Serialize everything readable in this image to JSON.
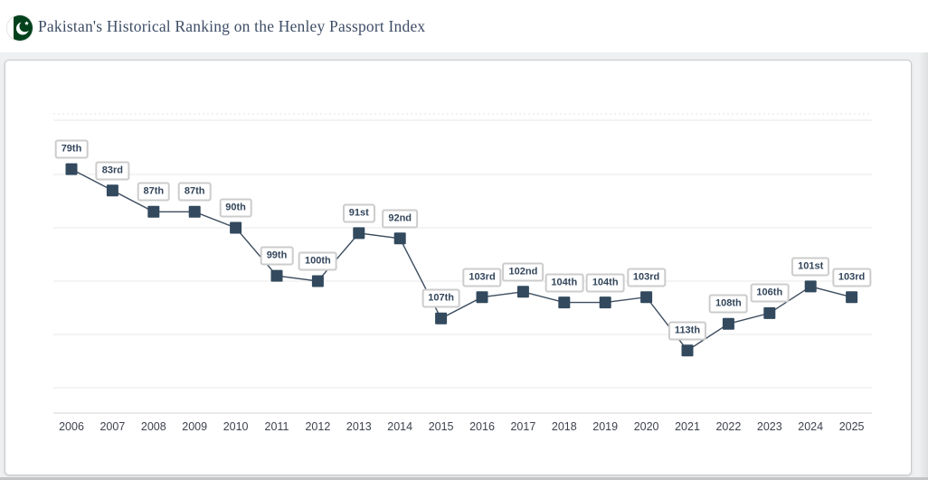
{
  "header": {
    "title": "Pakistan's Historical Ranking on the Henley Passport Index",
    "flag_icon": "pakistan-flag-icon",
    "flag_colors": {
      "green": "#01411c",
      "white": "#ffffff"
    }
  },
  "chart_data": {
    "type": "line",
    "title": "Pakistan's Historical Ranking on the Henley Passport Index",
    "x": [
      2006,
      2007,
      2008,
      2009,
      2010,
      2011,
      2012,
      2013,
      2014,
      2015,
      2016,
      2017,
      2018,
      2019,
      2020,
      2021,
      2022,
      2023,
      2024,
      2025
    ],
    "series": [
      {
        "name": "Henley Passport Index ranking",
        "values": [
          79,
          83,
          87,
          87,
          90,
          99,
          100,
          91,
          92,
          107,
          103,
          102,
          104,
          104,
          103,
          113,
          108,
          106,
          101,
          103
        ]
      }
    ],
    "point_labels": [
      "79th",
      "83rd",
      "87th",
      "87th",
      "90th",
      "99th",
      "100th",
      "91st",
      "92nd",
      "107th",
      "103rd",
      "102nd",
      "104th",
      "104th",
      "103rd",
      "113th",
      "108th",
      "106th",
      "101st",
      "103rd"
    ],
    "xlabel": "",
    "ylabel": "",
    "y_axis_inverted": true,
    "grid": true,
    "gridline_count": 6,
    "legend": "none",
    "colors": {
      "line": "#3d4d5f",
      "marker": "#32495e",
      "grid": "#e8e8e8",
      "grid_dashed": "#e3e3e3",
      "axis": "#d6d6d6",
      "label_border": "#cccccc",
      "label_text": "#32455b",
      "tick_text": "#3d424d"
    }
  }
}
